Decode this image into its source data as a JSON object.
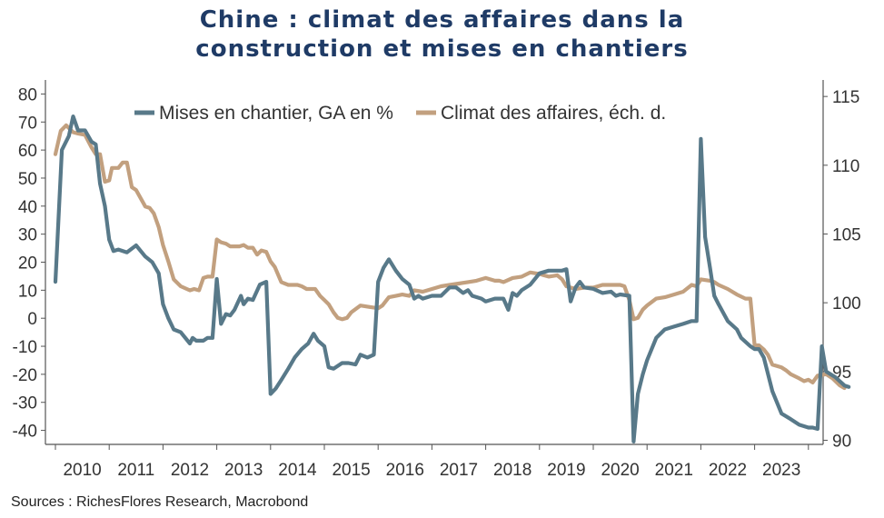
{
  "title": {
    "line1": "Chine : climat des affaires dans la",
    "line2": "construction et mises en chantiers"
  },
  "source": "Sources : RichesFlores Research, Macrobond",
  "chart_data": {
    "type": "line",
    "title": "Chine : climat des affaires dans la construction et mises en chantiers",
    "xlabel": "",
    "ylabel": "",
    "x_ticks": [
      "2010",
      "2011",
      "2012",
      "2013",
      "2014",
      "2015",
      "2016",
      "2017",
      "2018",
      "2019",
      "2020",
      "2021",
      "2022",
      "2023"
    ],
    "y_left": {
      "min": -45,
      "max": 85,
      "ticks": [
        80,
        70,
        60,
        50,
        40,
        30,
        20,
        10,
        0,
        -10,
        -20,
        -30,
        -40
      ]
    },
    "y_right": {
      "min": 89.7,
      "max": 116.2,
      "ticks": [
        115,
        110,
        105,
        100,
        95,
        90
      ]
    },
    "legend_placement": "top-center",
    "series": [
      {
        "name": "Mises en chantier, GA en %",
        "axis": "left",
        "color": "#587989",
        "points": [
          [
            2009.0,
            13
          ],
          [
            2009.12,
            60
          ],
          [
            2009.25,
            65
          ],
          [
            2009.33,
            72
          ],
          [
            2009.42,
            67
          ],
          [
            2009.55,
            67
          ],
          [
            2009.67,
            63
          ],
          [
            2009.75,
            62
          ],
          [
            2009.83,
            48
          ],
          [
            2009.92,
            40
          ],
          [
            2010.0,
            28
          ],
          [
            2010.08,
            24
          ],
          [
            2010.17,
            24.5
          ],
          [
            2010.33,
            23.5
          ],
          [
            2010.5,
            26
          ],
          [
            2010.67,
            22
          ],
          [
            2010.8,
            20
          ],
          [
            2010.92,
            16
          ],
          [
            2011.0,
            5
          ],
          [
            2011.1,
            0
          ],
          [
            2011.2,
            -4
          ],
          [
            2011.33,
            -5
          ],
          [
            2011.5,
            -9
          ],
          [
            2011.55,
            -7
          ],
          [
            2011.62,
            -8
          ],
          [
            2011.75,
            -8
          ],
          [
            2011.83,
            -7
          ],
          [
            2011.92,
            -7
          ],
          [
            2012.0,
            14
          ],
          [
            2012.08,
            -2
          ],
          [
            2012.17,
            1.5
          ],
          [
            2012.25,
            1
          ],
          [
            2012.33,
            3
          ],
          [
            2012.45,
            8
          ],
          [
            2012.5,
            5
          ],
          [
            2012.58,
            7
          ],
          [
            2012.67,
            6.5
          ],
          [
            2012.8,
            12
          ],
          [
            2012.92,
            13
          ],
          [
            2013.0,
            -27
          ],
          [
            2013.1,
            -25
          ],
          [
            2013.2,
            -22
          ],
          [
            2013.33,
            -18
          ],
          [
            2013.45,
            -14
          ],
          [
            2013.58,
            -11
          ],
          [
            2013.7,
            -9
          ],
          [
            2013.8,
            -5.5
          ],
          [
            2013.88,
            -8
          ],
          [
            2014.0,
            -10
          ],
          [
            2014.08,
            -17.5
          ],
          [
            2014.17,
            -18
          ],
          [
            2014.33,
            -16
          ],
          [
            2014.45,
            -16
          ],
          [
            2014.58,
            -16.5
          ],
          [
            2014.67,
            -13
          ],
          [
            2014.8,
            -14
          ],
          [
            2014.92,
            -13
          ],
          [
            2015.0,
            13
          ],
          [
            2015.1,
            18
          ],
          [
            2015.2,
            21
          ],
          [
            2015.33,
            17
          ],
          [
            2015.45,
            14
          ],
          [
            2015.58,
            12
          ],
          [
            2015.67,
            7
          ],
          [
            2015.75,
            8
          ],
          [
            2015.83,
            7
          ],
          [
            2016.0,
            8
          ],
          [
            2016.17,
            8
          ],
          [
            2016.33,
            11
          ],
          [
            2016.45,
            11
          ],
          [
            2016.58,
            9
          ],
          [
            2016.67,
            10
          ],
          [
            2016.75,
            8
          ],
          [
            2016.92,
            7
          ],
          [
            2017.0,
            6
          ],
          [
            2017.17,
            7
          ],
          [
            2017.33,
            7
          ],
          [
            2017.42,
            3
          ],
          [
            2017.5,
            9
          ],
          [
            2017.58,
            8
          ],
          [
            2017.67,
            10
          ],
          [
            2017.83,
            12
          ],
          [
            2018.0,
            16
          ],
          [
            2018.17,
            17
          ],
          [
            2018.33,
            17
          ],
          [
            2018.42,
            17
          ],
          [
            2018.5,
            17.5
          ],
          [
            2018.58,
            6
          ],
          [
            2018.67,
            11
          ],
          [
            2018.75,
            13
          ],
          [
            2018.83,
            11
          ],
          [
            2019.0,
            10.5
          ],
          [
            2019.17,
            9
          ],
          [
            2019.33,
            9.5
          ],
          [
            2019.42,
            8
          ],
          [
            2019.5,
            8.5
          ],
          [
            2019.67,
            8
          ],
          [
            2019.75,
            -44
          ],
          [
            2019.83,
            -27
          ],
          [
            2019.92,
            -20
          ],
          [
            2020.0,
            -15
          ],
          [
            2020.17,
            -7
          ],
          [
            2020.33,
            -4
          ],
          [
            2020.5,
            -3
          ],
          [
            2020.67,
            -2
          ],
          [
            2020.83,
            -1
          ],
          [
            2020.92,
            -1
          ],
          [
            2021.0,
            64
          ],
          [
            2021.08,
            29
          ],
          [
            2021.17,
            18
          ],
          [
            2021.25,
            8
          ],
          [
            2021.33,
            5
          ],
          [
            2021.5,
            -1
          ],
          [
            2021.67,
            -4
          ],
          [
            2021.75,
            -7
          ],
          [
            2021.92,
            -10
          ],
          [
            2022.0,
            -11
          ],
          [
            2022.08,
            -11
          ],
          [
            2022.17,
            -14
          ],
          [
            2022.33,
            -26
          ],
          [
            2022.5,
            -34
          ],
          [
            2022.67,
            -36
          ],
          [
            2022.83,
            -38
          ],
          [
            2023.0,
            -39
          ],
          [
            2023.08,
            -39
          ],
          [
            2023.17,
            -39.5
          ],
          [
            2023.25,
            -10
          ],
          [
            2023.33,
            -19
          ],
          [
            2023.5,
            -21
          ],
          [
            2023.67,
            -24
          ],
          [
            2023.75,
            -24.5
          ]
        ]
      },
      {
        "name": "Climat des affaires, éch. d.",
        "axis": "right",
        "color": "#c2a07f",
        "points": [
          [
            2009.0,
            110.8
          ],
          [
            2009.1,
            112.5
          ],
          [
            2009.2,
            112.9
          ],
          [
            2009.33,
            112.4
          ],
          [
            2009.42,
            112.3
          ],
          [
            2009.55,
            112.2
          ],
          [
            2009.67,
            111.3
          ],
          [
            2009.75,
            110.8
          ],
          [
            2009.83,
            110.8
          ],
          [
            2009.92,
            108.8
          ],
          [
            2010.0,
            108.9
          ],
          [
            2010.05,
            109.8
          ],
          [
            2010.17,
            109.8
          ],
          [
            2010.25,
            110.2
          ],
          [
            2010.33,
            110.2
          ],
          [
            2010.42,
            108.4
          ],
          [
            2010.5,
            108.2
          ],
          [
            2010.67,
            107.0
          ],
          [
            2010.75,
            106.9
          ],
          [
            2010.83,
            106.5
          ],
          [
            2010.92,
            105.5
          ],
          [
            2011.0,
            104.2
          ],
          [
            2011.1,
            103.0
          ],
          [
            2011.2,
            101.7
          ],
          [
            2011.33,
            101.2
          ],
          [
            2011.5,
            100.9
          ],
          [
            2011.58,
            101.0
          ],
          [
            2011.67,
            100.9
          ],
          [
            2011.75,
            101.8
          ],
          [
            2011.83,
            101.9
          ],
          [
            2011.92,
            101.9
          ],
          [
            2012.0,
            104.6
          ],
          [
            2012.08,
            104.4
          ],
          [
            2012.17,
            104.3
          ],
          [
            2012.25,
            104.1
          ],
          [
            2012.42,
            104.1
          ],
          [
            2012.5,
            104.2
          ],
          [
            2012.58,
            104.0
          ],
          [
            2012.67,
            104.0
          ],
          [
            2012.75,
            103.5
          ],
          [
            2012.83,
            103.8
          ],
          [
            2012.92,
            103.7
          ],
          [
            2013.0,
            103.0
          ],
          [
            2013.08,
            102.6
          ],
          [
            2013.2,
            101.5
          ],
          [
            2013.33,
            101.3
          ],
          [
            2013.5,
            101.3
          ],
          [
            2013.58,
            101.2
          ],
          [
            2013.67,
            101.0
          ],
          [
            2013.83,
            101.0
          ],
          [
            2013.92,
            100.5
          ],
          [
            2014.0,
            100.2
          ],
          [
            2014.08,
            99.9
          ],
          [
            2014.17,
            99.3
          ],
          [
            2014.25,
            98.9
          ],
          [
            2014.33,
            98.8
          ],
          [
            2014.42,
            98.9
          ],
          [
            2014.5,
            99.3
          ],
          [
            2014.67,
            99.8
          ],
          [
            2014.83,
            99.7
          ],
          [
            2015.0,
            99.6
          ],
          [
            2015.08,
            99.8
          ],
          [
            2015.2,
            100.4
          ],
          [
            2015.33,
            100.5
          ],
          [
            2015.45,
            100.6
          ],
          [
            2015.58,
            100.5
          ],
          [
            2015.67,
            100.9
          ],
          [
            2015.83,
            100.8
          ],
          [
            2016.0,
            101.0
          ],
          [
            2016.17,
            101.2
          ],
          [
            2016.33,
            101.3
          ],
          [
            2016.5,
            101.4
          ],
          [
            2016.67,
            101.5
          ],
          [
            2016.83,
            101.6
          ],
          [
            2017.0,
            101.8
          ],
          [
            2017.17,
            101.6
          ],
          [
            2017.25,
            101.6
          ],
          [
            2017.33,
            101.5
          ],
          [
            2017.5,
            101.8
          ],
          [
            2017.67,
            101.9
          ],
          [
            2017.83,
            102.2
          ],
          [
            2018.0,
            102.1
          ],
          [
            2018.08,
            102.0
          ],
          [
            2018.17,
            101.9
          ],
          [
            2018.33,
            102.0
          ],
          [
            2018.42,
            101.7
          ],
          [
            2018.5,
            101.2
          ],
          [
            2018.67,
            101.0
          ],
          [
            2018.83,
            101.1
          ],
          [
            2019.0,
            101.1
          ],
          [
            2019.17,
            101.3
          ],
          [
            2019.33,
            101.3
          ],
          [
            2019.5,
            101.3
          ],
          [
            2019.58,
            101.2
          ],
          [
            2019.67,
            100.2
          ],
          [
            2019.75,
            98.8
          ],
          [
            2019.83,
            98.9
          ],
          [
            2019.92,
            99.5
          ],
          [
            2020.0,
            99.8
          ],
          [
            2020.17,
            100.3
          ],
          [
            2020.33,
            100.4
          ],
          [
            2020.5,
            100.6
          ],
          [
            2020.67,
            100.8
          ],
          [
            2020.83,
            101.3
          ],
          [
            2020.92,
            101.2
          ],
          [
            2021.0,
            101.7
          ],
          [
            2021.17,
            101.6
          ],
          [
            2021.25,
            101.5
          ],
          [
            2021.33,
            101.3
          ],
          [
            2021.5,
            101.0
          ],
          [
            2021.67,
            100.6
          ],
          [
            2021.83,
            100.3
          ],
          [
            2021.92,
            100.3
          ],
          [
            2022.0,
            96.9
          ],
          [
            2022.08,
            96.9
          ],
          [
            2022.17,
            96.6
          ],
          [
            2022.25,
            96.2
          ],
          [
            2022.33,
            95.5
          ],
          [
            2022.5,
            95.3
          ],
          [
            2022.58,
            95.1
          ],
          [
            2022.67,
            94.8
          ],
          [
            2022.83,
            94.5
          ],
          [
            2022.92,
            94.3
          ],
          [
            2023.0,
            94.4
          ],
          [
            2023.08,
            94.2
          ],
          [
            2023.17,
            94.7
          ],
          [
            2023.33,
            94.8
          ],
          [
            2023.45,
            94.5
          ],
          [
            2023.58,
            94.0
          ],
          [
            2023.67,
            93.8
          ]
        ]
      }
    ]
  }
}
